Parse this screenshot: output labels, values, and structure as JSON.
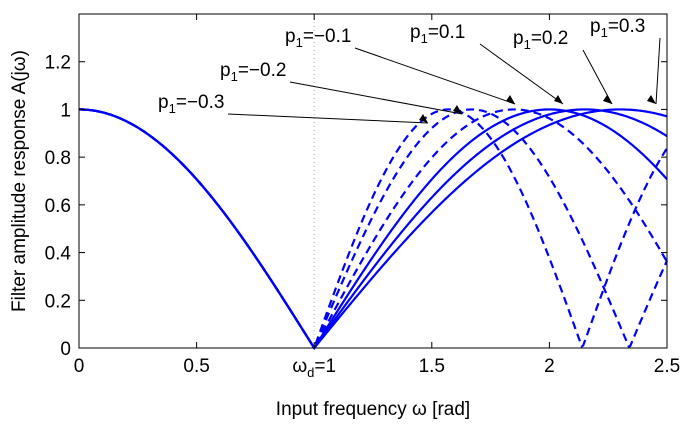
{
  "chart_data": {
    "type": "line",
    "xlabel": "Input frequency ω [rad]",
    "ylabel": "Filter amplitude response A(jω)",
    "xlim": [
      0,
      2.5
    ],
    "ylim": [
      0,
      1.4
    ],
    "x_ticks": [
      {
        "value": 0,
        "label": "0"
      },
      {
        "value": 0.5,
        "label": "0.5"
      },
      {
        "value": 1,
        "label": "ω_d=1",
        "main": "ω",
        "sub": "d",
        "tail": "=1"
      },
      {
        "value": 1.5,
        "label": "1.5"
      },
      {
        "value": 2,
        "label": "2"
      },
      {
        "value": 2.5,
        "label": "2.5"
      }
    ],
    "y_ticks": [
      {
        "value": 0,
        "label": "0"
      },
      {
        "value": 0.2,
        "label": "0.2"
      },
      {
        "value": 0.4,
        "label": "0.4"
      },
      {
        "value": 0.6,
        "label": "0.6"
      },
      {
        "value": 0.8,
        "label": "0.8"
      },
      {
        "value": 1,
        "label": "1"
      },
      {
        "value": 1.2,
        "label": "1.2"
      }
    ],
    "grid": false,
    "reference_line": {
      "x": 1,
      "style": "dotted"
    },
    "series": [
      {
        "name": "p1=−0.3",
        "main": "p",
        "sub": "1",
        "tail": "=−0.3",
        "p": -0.3,
        "dashed": true,
        "peak_x": 1.57
      },
      {
        "name": "p1=−0.2",
        "main": "p",
        "sub": "1",
        "tail": "=−0.2",
        "p": -0.2,
        "dashed": true,
        "peak_x": 1.67
      },
      {
        "name": "p1=−0.1",
        "main": "p",
        "sub": "1",
        "tail": "=−0.1",
        "p": -0.1,
        "dashed": true,
        "peak_x": 1.85
      },
      {
        "name": "p1=0.1",
        "main": "p",
        "sub": "1",
        "tail": "=0.1",
        "p": 0.1,
        "dashed": false,
        "peak_x": 2.0
      },
      {
        "name": "p1=0.2",
        "main": "p",
        "sub": "1",
        "tail": "=0.2",
        "p": 0.2,
        "dashed": false,
        "peak_x": 2.15
      },
      {
        "name": "p1=0.3",
        "main": "p",
        "sub": "1",
        "tail": "=0.3",
        "p": 0.3,
        "dashed": false,
        "peak_x": 2.3
      }
    ],
    "line_color": "#0000ff"
  }
}
